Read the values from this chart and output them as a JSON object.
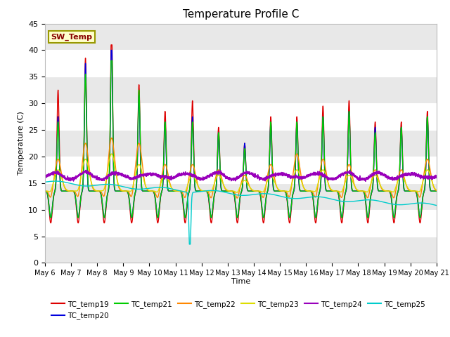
{
  "title": "Temperature Profile C",
  "xlabel": "Time",
  "ylabel": "Temperature (C)",
  "ylim": [
    0,
    45
  ],
  "series_names": [
    "TC_temp19",
    "TC_temp20",
    "TC_temp21",
    "TC_temp22",
    "TC_temp23",
    "TC_temp24",
    "TC_temp25"
  ],
  "series_colors": [
    "#dd0000",
    "#0000dd",
    "#00cc00",
    "#ff8800",
    "#dddd00",
    "#9900bb",
    "#00cccc"
  ],
  "tick_dates": [
    "May 6",
    "May 7",
    "May 8",
    "May 9",
    "May 10",
    "May 11",
    "May 12",
    "May 13",
    "May 14",
    "May 15",
    "May 16",
    "May 17",
    "May 18",
    "May 19",
    "May 20",
    "May 21"
  ],
  "sw_temp_label": "SW_Temp",
  "sw_temp_box_color": "#ffffcc",
  "sw_temp_border_color": "#999900",
  "sw_temp_text_color": "#880000",
  "title_fontsize": 11,
  "band_colors": [
    "#e8e8e8",
    "#d8d8d8"
  ]
}
